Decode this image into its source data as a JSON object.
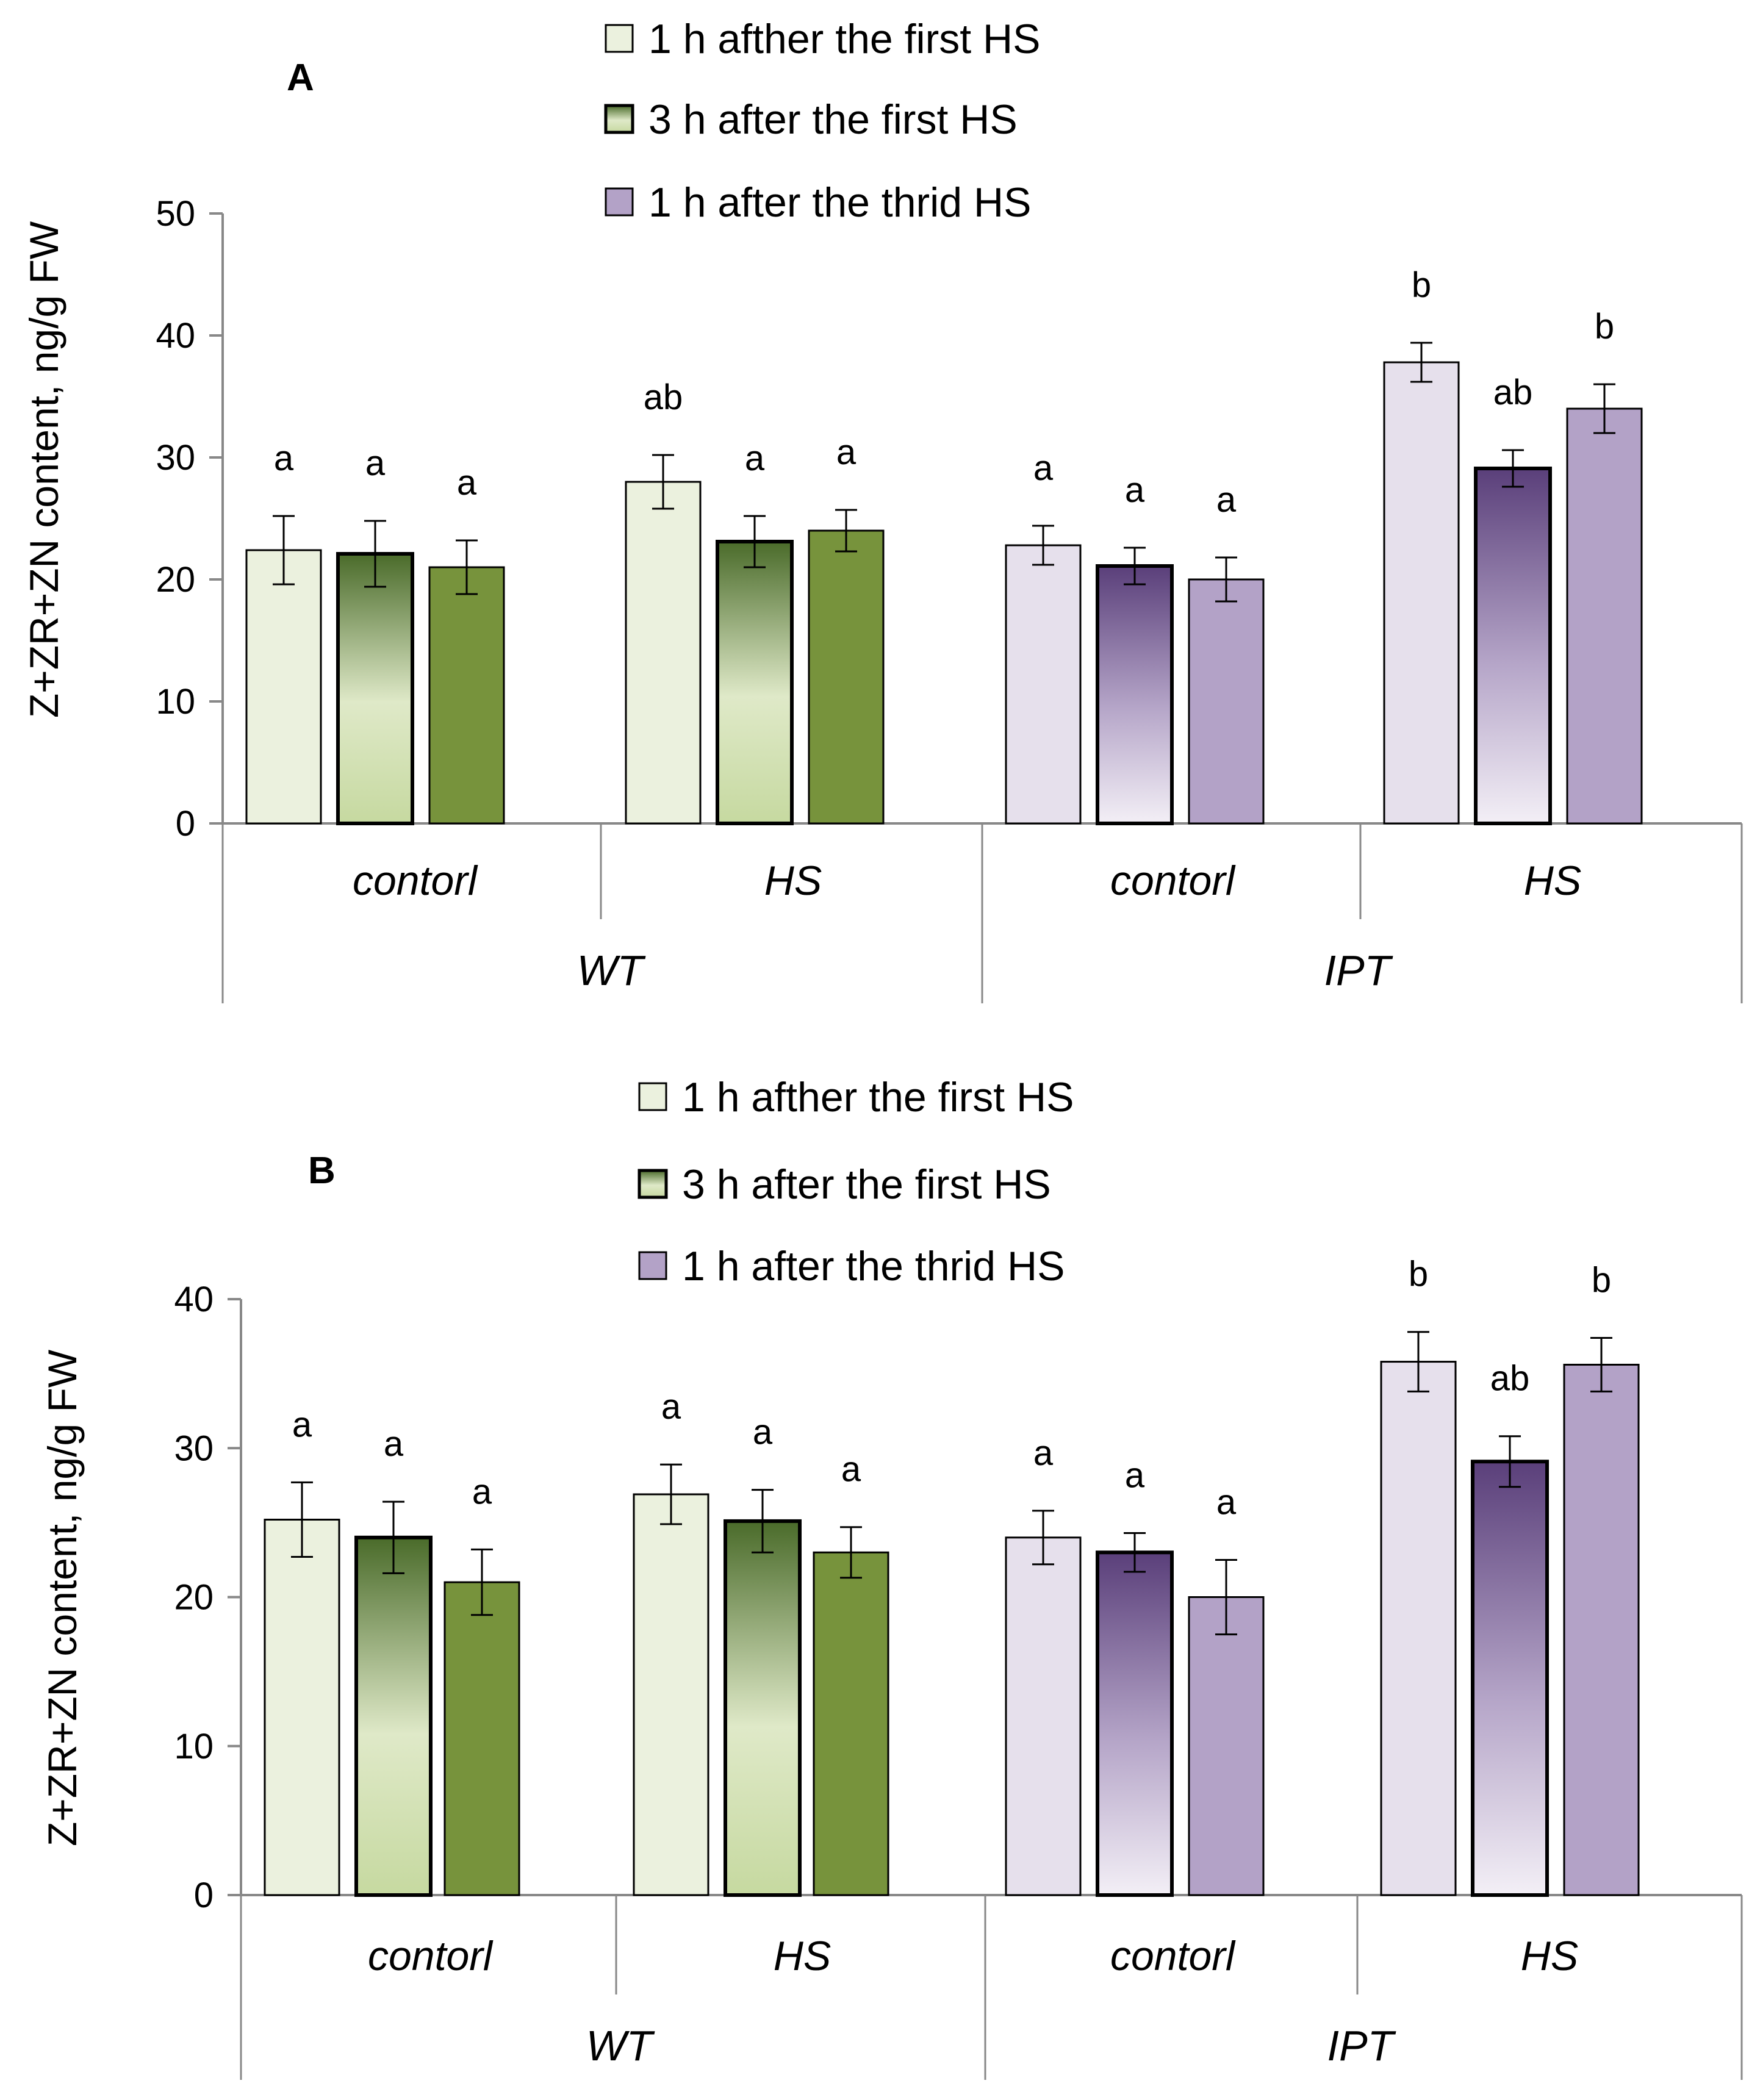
{
  "chart_data": [
    {
      "type": "bar",
      "panel_label": "A",
      "ylabel": "Z+ZR+ZN content, ng/g FW",
      "ylim": [
        0,
        50
      ],
      "yticks": [
        "0",
        "10",
        "20",
        "30",
        "40",
        "50"
      ],
      "groups": [
        {
          "name": "WT",
          "subgroups": [
            "contorl",
            "HS"
          ]
        },
        {
          "name": "IPT",
          "subgroups": [
            "contorl",
            "HS"
          ]
        }
      ],
      "categories": [
        "contorl",
        "HS",
        "contorl",
        "HS"
      ],
      "series": [
        {
          "name": "1 h afther the first HS",
          "values": [
            22.4,
            28.0,
            22.8,
            37.8
          ],
          "errors": [
            2.8,
            2.2,
            1.6,
            1.6
          ],
          "letters": [
            "a",
            "ab",
            "a",
            "b"
          ]
        },
        {
          "name": "3 h after the first HS",
          "values": [
            22.1,
            23.1,
            21.1,
            29.1
          ],
          "errors": [
            2.7,
            2.1,
            1.5,
            1.5
          ],
          "letters": [
            "a",
            "a",
            "a",
            "ab"
          ]
        },
        {
          "name": "1 h after the thrid HS",
          "values": [
            21.0,
            24.0,
            20.0,
            34.0
          ],
          "errors": [
            2.2,
            1.7,
            1.8,
            2.0
          ],
          "letters": [
            "a",
            "a",
            "a",
            "b"
          ]
        }
      ],
      "legend": [
        "1 h afther the first HS",
        "3 h after the first HS",
        "1 h after the thrid HS"
      ]
    },
    {
      "type": "bar",
      "panel_label": "B",
      "ylabel": "Z+ZR+ZN content, ng/g FW",
      "ylim": [
        0,
        40
      ],
      "yticks": [
        "0",
        "10",
        "20",
        "30",
        "40"
      ],
      "groups": [
        {
          "name": "WT",
          "subgroups": [
            "contorl",
            "HS"
          ]
        },
        {
          "name": "IPT",
          "subgroups": [
            "contorl",
            "HS"
          ]
        }
      ],
      "categories": [
        "contorl",
        "HS",
        "contorl",
        "HS"
      ],
      "series": [
        {
          "name": "1 h afther the first HS",
          "values": [
            25.2,
            26.9,
            24.0,
            35.8
          ],
          "errors": [
            2.5,
            2.0,
            1.8,
            2.0
          ],
          "letters": [
            "a",
            "a",
            "a",
            "b"
          ]
        },
        {
          "name": "3 h after the first HS",
          "values": [
            24.0,
            25.1,
            23.0,
            29.1
          ],
          "errors": [
            2.4,
            2.1,
            1.3,
            1.7
          ],
          "letters": [
            "a",
            "a",
            "a",
            "ab"
          ]
        },
        {
          "name": "1 h after the thrid HS",
          "values": [
            21.0,
            23.0,
            20.0,
            35.6
          ],
          "errors": [
            2.2,
            1.7,
            2.5,
            1.8
          ],
          "letters": [
            "a",
            "a",
            "a",
            "b"
          ]
        }
      ],
      "legend": [
        "1 h afther the first HS",
        "3 h after the first HS",
        "1 h after the thrid HS"
      ]
    }
  ],
  "colors": {
    "wt_light": "#ebf1de",
    "wt_mid_top": "#4a6b2a",
    "wt_mid_bottom": "#c6d9a0",
    "wt_dark": "#77933c",
    "ipt_light": "#e6e0ec",
    "ipt_mid_top": "#5a3f7a",
    "ipt_mid_bottom": "#f0ecf4",
    "ipt_dark": "#b3a2c7",
    "axis": "#888888"
  }
}
